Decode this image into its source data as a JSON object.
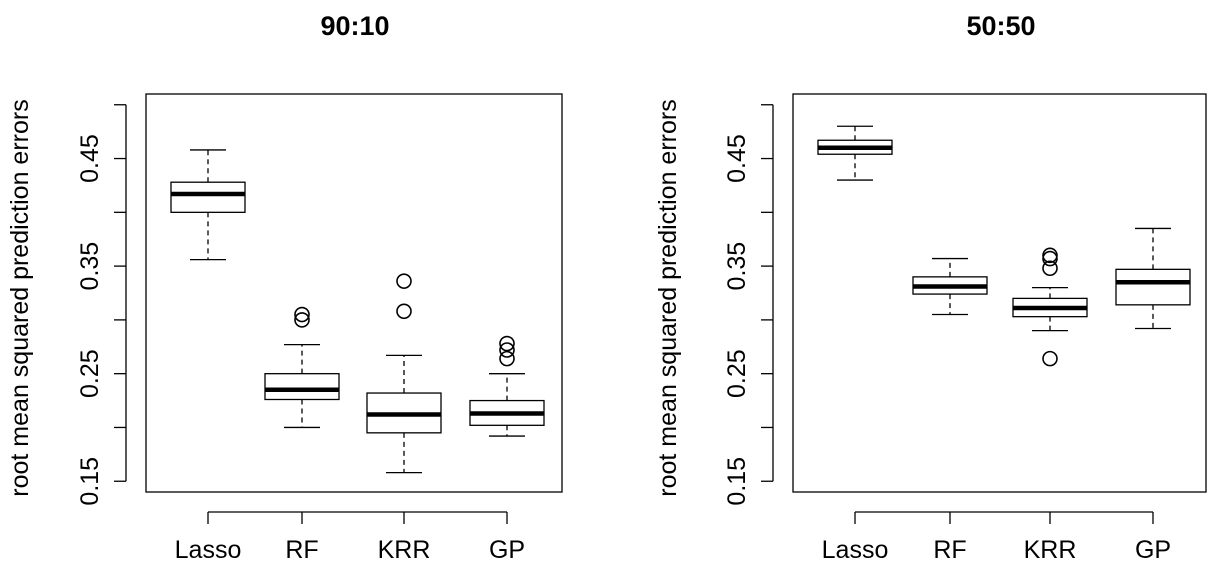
{
  "chart_data": [
    {
      "type": "boxplot",
      "title": "90:10",
      "ylabel": "root mean squared prediction errors",
      "xlabel": "",
      "ylim": [
        0.14,
        0.51
      ],
      "yticks": [
        0.15,
        0.25,
        0.35,
        0.45
      ],
      "yticks_minor": [
        0.2,
        0.3,
        0.4,
        0.5
      ],
      "categories": [
        "Lasso",
        "RF",
        "KRR",
        "GP"
      ],
      "boxes": [
        {
          "name": "Lasso",
          "whisker_low": 0.356,
          "q1": 0.4,
          "median": 0.417,
          "q3": 0.428,
          "whisker_high": 0.458,
          "outliers": []
        },
        {
          "name": "RF",
          "whisker_low": 0.2,
          "q1": 0.226,
          "median": 0.235,
          "q3": 0.25,
          "whisker_high": 0.277,
          "outliers": [
            0.3,
            0.305
          ]
        },
        {
          "name": "KRR",
          "whisker_low": 0.158,
          "q1": 0.195,
          "median": 0.212,
          "q3": 0.232,
          "whisker_high": 0.267,
          "outliers": [
            0.308,
            0.336
          ]
        },
        {
          "name": "GP",
          "whisker_low": 0.192,
          "q1": 0.202,
          "median": 0.213,
          "q3": 0.225,
          "whisker_high": 0.25,
          "outliers": [
            0.264,
            0.272,
            0.278
          ]
        }
      ]
    },
    {
      "type": "boxplot",
      "title": "50:50",
      "ylabel": "root mean squared prediction errors",
      "xlabel": "",
      "ylim": [
        0.14,
        0.51
      ],
      "yticks": [
        0.15,
        0.25,
        0.35,
        0.45
      ],
      "yticks_minor": [
        0.2,
        0.3,
        0.4,
        0.5
      ],
      "categories": [
        "Lasso",
        "RF",
        "KRR",
        "GP"
      ],
      "boxes": [
        {
          "name": "Lasso",
          "whisker_low": 0.43,
          "q1": 0.454,
          "median": 0.46,
          "q3": 0.467,
          "whisker_high": 0.48,
          "outliers": []
        },
        {
          "name": "RF",
          "whisker_low": 0.305,
          "q1": 0.324,
          "median": 0.331,
          "q3": 0.34,
          "whisker_high": 0.357,
          "outliers": []
        },
        {
          "name": "KRR",
          "whisker_low": 0.29,
          "q1": 0.303,
          "median": 0.311,
          "q3": 0.32,
          "whisker_high": 0.33,
          "outliers": [
            0.264,
            0.348,
            0.357,
            0.36
          ]
        },
        {
          "name": "GP",
          "whisker_low": 0.292,
          "q1": 0.314,
          "median": 0.335,
          "q3": 0.347,
          "whisker_high": 0.385,
          "outliers": []
        }
      ]
    }
  ]
}
